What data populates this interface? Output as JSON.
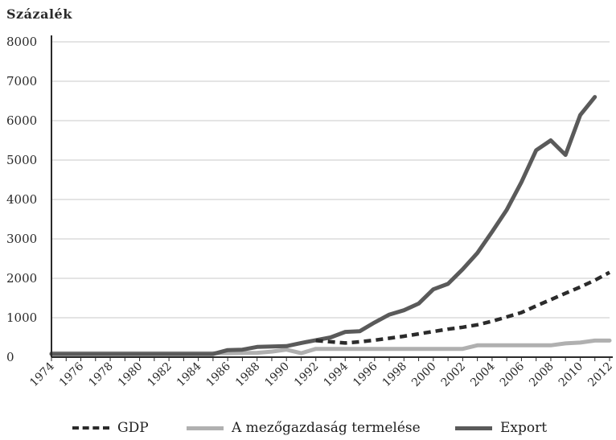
{
  "chart_data": {
    "type": "line",
    "title": "",
    "ylabel": "Százalék",
    "xlabel": "",
    "ylim": [
      0,
      8000
    ],
    "xlim": [
      1974,
      2012
    ],
    "yticks": [
      0,
      1000,
      2000,
      3000,
      4000,
      5000,
      6000,
      7000,
      8000
    ],
    "xtick_labels": [
      "1974",
      "1976",
      "1978",
      "1980",
      "1982",
      "1984",
      "1986",
      "1988",
      "1990",
      "1992",
      "1994",
      "1996",
      "1998",
      "2000",
      "2002",
      "2004",
      "2006",
      "2008",
      "2010",
      "2012"
    ],
    "grid": true,
    "legend_position": "bottom",
    "series": [
      {
        "name": "GDP",
        "color": "#2b2b2b",
        "style": "dashed",
        "x": [
          1992,
          1993,
          1994,
          1995,
          1996,
          1997,
          1998,
          1999,
          2000,
          2001,
          2002,
          2003,
          2004,
          2005,
          2006,
          2007,
          2008,
          2009,
          2010,
          2011,
          2012
        ],
        "values": [
          420,
          390,
          360,
          390,
          430,
          480,
          530,
          590,
          650,
          710,
          760,
          820,
          910,
          1020,
          1130,
          1300,
          1460,
          1620,
          1780,
          1950,
          2150
        ]
      },
      {
        "name": "A mezőgazdaság termelése",
        "color": "#b0b0b0",
        "style": "solid",
        "x": [
          1974,
          1976,
          1978,
          1980,
          1982,
          1984,
          1986,
          1988,
          1989,
          1990,
          1991,
          1992,
          1993,
          1994,
          1995,
          1996,
          1997,
          1998,
          1999,
          2000,
          2001,
          2002,
          2003,
          2004,
          2005,
          2006,
          2007,
          2008,
          2009,
          2010,
          2011,
          2012
        ],
        "values": [
          100,
          100,
          100,
          100,
          100,
          100,
          100,
          110,
          140,
          190,
          100,
          210,
          210,
          210,
          210,
          210,
          210,
          210,
          210,
          210,
          210,
          210,
          300,
          300,
          300,
          300,
          300,
          300,
          350,
          370,
          420,
          420
        ]
      },
      {
        "name": "Export",
        "color": "#5a5a5a",
        "style": "solid",
        "x": [
          1974,
          1976,
          1978,
          1980,
          1982,
          1984,
          1985,
          1986,
          1987,
          1988,
          1989,
          1990,
          1991,
          1992,
          1993,
          1994,
          1995,
          1996,
          1997,
          1998,
          1999,
          2000,
          2001,
          2002,
          2003,
          2004,
          2005,
          2006,
          2007,
          2008,
          2009,
          2010,
          2011
        ],
        "values": [
          80,
          80,
          80,
          80,
          80,
          80,
          80,
          180,
          190,
          260,
          270,
          280,
          360,
          430,
          500,
          640,
          660,
          880,
          1080,
          1190,
          1360,
          1720,
          1860,
          2230,
          2640,
          3180,
          3740,
          4440,
          5250,
          5500,
          5130,
          6140,
          6600
        ]
      }
    ]
  }
}
